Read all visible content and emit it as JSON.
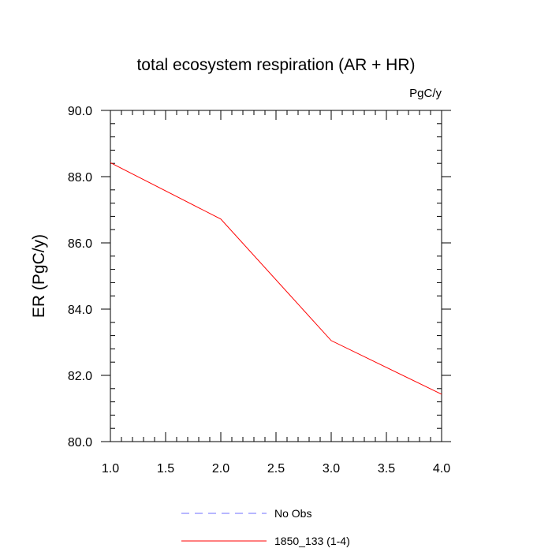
{
  "chart_data": {
    "type": "line",
    "title": "total ecosystem respiration (AR + HR)",
    "units": "PgC/y",
    "xlabel": "",
    "ylabel": "ER  (PgC/y)",
    "xlim": [
      1.0,
      4.0
    ],
    "ylim": [
      80.0,
      90.0
    ],
    "x_ticks": [
      1.0,
      1.5,
      2.0,
      2.5,
      3.0,
      3.5,
      4.0
    ],
    "x_tick_labels": [
      "1.0",
      "1.5",
      "2.0",
      "2.5",
      "3.0",
      "3.5",
      "4.0"
    ],
    "y_ticks": [
      80.0,
      82.0,
      84.0,
      86.0,
      88.0,
      90.0
    ],
    "y_tick_labels": [
      "80.0",
      "82.0",
      "84.0",
      "86.0",
      "88.0",
      "90.0"
    ],
    "legend_position": "bottom",
    "series": [
      {
        "name": "1850_133 (1-4)",
        "color": "#ff0000",
        "style": "solid",
        "x": [
          1.0,
          2.0,
          3.0,
          4.0
        ],
        "y": [
          88.42,
          86.72,
          83.05,
          81.43
        ]
      }
    ],
    "legend": [
      {
        "label": "No Obs",
        "color": "#6f6fff",
        "style": "dashed"
      },
      {
        "label": "1850_133 (1-4)",
        "color": "#ff0000",
        "style": "solid"
      }
    ]
  }
}
